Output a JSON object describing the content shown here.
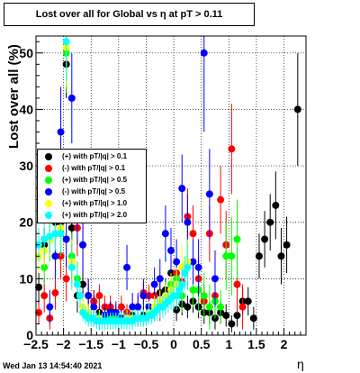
{
  "title": "Lost over all for Global vs   η at pT > 0.11",
  "footer": "Wed Jan 13 14:54:40 2021",
  "chart_data": {
    "type": "scatter",
    "xlabel": "η",
    "ylabel": "Lost over all (%)",
    "xlim": [
      -2.5,
      2.4
    ],
    "ylim": [
      0,
      53
    ],
    "x_ticks": [
      -2.5,
      -2,
      -1.5,
      -1,
      -0.5,
      0,
      0.5,
      1,
      1.5,
      2
    ],
    "x_tick_labels": [
      "−2.5",
      "−2",
      "−1.5",
      "−1",
      "−0.5",
      "0",
      "0.5",
      "1",
      "1.5",
      "2"
    ],
    "y_ticks": [
      0,
      10,
      20,
      30,
      40,
      50
    ],
    "y_tick_labels": [
      "0",
      "10",
      "20",
      "30",
      "40",
      "50"
    ],
    "grid": true,
    "legend_position": "left-middle",
    "series": [
      {
        "name": "(+) with pT/|q| > 0.1",
        "color": "#000000",
        "points": [
          [
            -2.45,
            8.5,
            3
          ],
          [
            -2.35,
            16,
            3
          ],
          [
            -2.25,
            17,
            3
          ],
          [
            -2.15,
            20,
            4
          ],
          [
            -2.05,
            20,
            4
          ],
          [
            -1.95,
            48,
            6
          ],
          [
            -1.85,
            19,
            4
          ],
          [
            -1.75,
            7,
            3
          ],
          [
            -1.65,
            9,
            3
          ],
          [
            -1.55,
            7,
            2
          ],
          [
            -1.45,
            6,
            2
          ],
          [
            -1.35,
            4,
            1.5
          ],
          [
            -1.25,
            3.5,
            1.5
          ],
          [
            -1.15,
            4.5,
            1.5
          ],
          [
            -1.05,
            3.5,
            1.5
          ],
          [
            -0.95,
            3,
            1.5
          ],
          [
            -0.85,
            4,
            1.5
          ],
          [
            -0.75,
            3.5,
            1.5
          ],
          [
            -0.65,
            3,
            1.5
          ],
          [
            -0.55,
            3.5,
            1.5
          ],
          [
            -0.45,
            5,
            2
          ],
          [
            -0.35,
            4.5,
            2
          ],
          [
            -0.25,
            7.5,
            2
          ],
          [
            -0.15,
            8,
            2
          ],
          [
            -0.05,
            11,
            3
          ],
          [
            0.05,
            4.5,
            2
          ],
          [
            0.15,
            5.5,
            2
          ],
          [
            0.25,
            5,
            2
          ],
          [
            0.35,
            6,
            2
          ],
          [
            0.45,
            5,
            2
          ],
          [
            0.55,
            4,
            2
          ],
          [
            0.65,
            4,
            2
          ],
          [
            0.75,
            3,
            2
          ],
          [
            0.85,
            4,
            2
          ],
          [
            0.95,
            3.5,
            2
          ],
          [
            1.05,
            2,
            1.5
          ],
          [
            1.15,
            3.5,
            2
          ],
          [
            1.25,
            6,
            2.5
          ],
          [
            1.35,
            6,
            2.5
          ],
          [
            1.45,
            3,
            2
          ],
          [
            1.55,
            14,
            4
          ],
          [
            1.65,
            17,
            5
          ],
          [
            1.75,
            20,
            5
          ],
          [
            1.85,
            23,
            6
          ],
          [
            1.95,
            14,
            5
          ],
          [
            2.05,
            16,
            5
          ],
          [
            2.25,
            40,
            10
          ]
        ]
      },
      {
        "name": "(-) with pT/|q| > 0.1",
        "color": "#ff0000",
        "points": [
          [
            -2.45,
            4,
            2
          ],
          [
            -2.35,
            7,
            3
          ],
          [
            -2.25,
            3,
            2
          ],
          [
            -2.15,
            7.5,
            3
          ],
          [
            -2.05,
            14,
            4
          ],
          [
            -1.95,
            10,
            4
          ],
          [
            -1.85,
            13,
            4
          ],
          [
            -1.75,
            19,
            5
          ],
          [
            -1.65,
            16,
            5
          ],
          [
            -1.55,
            7,
            3
          ],
          [
            -1.45,
            6,
            2
          ],
          [
            -1.35,
            7,
            2
          ],
          [
            -1.25,
            5,
            2
          ],
          [
            -1.15,
            5,
            2
          ],
          [
            -1.05,
            4,
            1.5
          ],
          [
            -0.95,
            5,
            2
          ],
          [
            -0.85,
            4,
            1.5
          ],
          [
            -0.75,
            3,
            1.5
          ],
          [
            -0.65,
            5,
            2
          ],
          [
            -0.55,
            7.5,
            2
          ],
          [
            -0.45,
            7,
            2
          ],
          [
            -0.35,
            7,
            2.5
          ],
          [
            -0.25,
            5,
            2.5
          ],
          [
            -0.15,
            7,
            2.5
          ],
          [
            -0.05,
            8,
            3
          ],
          [
            0.05,
            11,
            3
          ],
          [
            0.15,
            9.5,
            3
          ],
          [
            0.25,
            21,
            5
          ],
          [
            0.35,
            18,
            5
          ],
          [
            0.45,
            10,
            4
          ],
          [
            0.55,
            6,
            3
          ],
          [
            0.65,
            18,
            5
          ],
          [
            0.75,
            7,
            4
          ],
          [
            0.85,
            24,
            6
          ],
          [
            0.95,
            16,
            6
          ],
          [
            1.05,
            33,
            8
          ],
          [
            1.15,
            9,
            5
          ],
          [
            1.25,
            5,
            4
          ]
        ]
      },
      {
        "name": "(+) with pT/|q| > 0.5",
        "color": "#00ff00",
        "points": [
          [
            -2.35,
            12,
            3
          ],
          [
            -2.25,
            17,
            4
          ],
          [
            -2.15,
            18,
            4
          ],
          [
            -2.05,
            18,
            4
          ],
          [
            -1.95,
            50,
            7
          ],
          [
            -1.85,
            14,
            4
          ],
          [
            -1.75,
            10,
            3
          ],
          [
            -1.65,
            5,
            2
          ],
          [
            -1.55,
            4,
            2
          ],
          [
            -1.45,
            3,
            1.5
          ],
          [
            -1.35,
            3,
            1.5
          ],
          [
            -1.25,
            3,
            1.5
          ],
          [
            -1.15,
            3,
            1.5
          ],
          [
            -1.05,
            3,
            1.5
          ],
          [
            -0.95,
            3,
            1.5
          ],
          [
            -0.85,
            3,
            1.5
          ],
          [
            -0.75,
            3,
            1.5
          ],
          [
            -0.65,
            3,
            1.5
          ],
          [
            -0.55,
            3,
            1.5
          ],
          [
            -0.45,
            4,
            2
          ],
          [
            -0.35,
            4.5,
            2
          ],
          [
            -0.25,
            6,
            2
          ],
          [
            -0.15,
            7,
            2.5
          ],
          [
            -0.05,
            9,
            3
          ],
          [
            0.05,
            10,
            3
          ],
          [
            0.15,
            7,
            3
          ],
          [
            0.25,
            12,
            4
          ],
          [
            0.35,
            8,
            3
          ],
          [
            0.45,
            8,
            4
          ],
          [
            0.55,
            7,
            4
          ],
          [
            0.65,
            5,
            4
          ],
          [
            0.75,
            6,
            3
          ],
          [
            0.85,
            5,
            3
          ],
          [
            0.95,
            14,
            6
          ],
          [
            1.05,
            14,
            7
          ],
          [
            1.15,
            17,
            7
          ]
        ]
      },
      {
        "name": "(-) with pT/|q| > 0.5",
        "color": "#0000ff",
        "points": [
          [
            -2.25,
            5,
            3
          ],
          [
            -2.15,
            14,
            4
          ],
          [
            -2.05,
            36,
            8
          ],
          [
            -1.95,
            17,
            5
          ],
          [
            -1.85,
            42,
            8
          ],
          [
            -1.75,
            21,
            5
          ],
          [
            -1.65,
            16,
            5
          ],
          [
            -1.55,
            7,
            3
          ],
          [
            -1.45,
            5,
            2
          ],
          [
            -1.35,
            3,
            2
          ],
          [
            -1.25,
            3.5,
            2
          ],
          [
            -1.15,
            4,
            2
          ],
          [
            -1.05,
            4,
            2
          ],
          [
            -0.95,
            3,
            1.5
          ],
          [
            -0.85,
            12,
            4
          ],
          [
            -0.75,
            5,
            2.5
          ],
          [
            -0.65,
            5,
            2.5
          ],
          [
            -0.55,
            7,
            3
          ],
          [
            -0.45,
            5,
            2.5
          ],
          [
            -0.35,
            9,
            3
          ],
          [
            -0.25,
            10,
            3.5
          ],
          [
            -0.15,
            18,
            5
          ],
          [
            -0.05,
            15,
            4
          ],
          [
            0.05,
            13,
            4
          ],
          [
            0.15,
            26,
            6
          ],
          [
            0.25,
            20,
            5
          ],
          [
            0.35,
            13,
            4
          ],
          [
            0.45,
            12,
            5
          ],
          [
            0.55,
            50,
            14
          ],
          [
            0.65,
            25,
            8
          ],
          [
            0.75,
            10,
            5
          ]
        ]
      },
      {
        "name": "(+) with pT/|q| > 1.0",
        "color": "#ffff00",
        "points": [
          [
            -2.45,
            14,
            3
          ],
          [
            -2.35,
            15,
            3
          ],
          [
            -2.25,
            17,
            3
          ],
          [
            -2.15,
            18,
            3
          ],
          [
            -2.05,
            19,
            4
          ],
          [
            -1.95,
            51,
            7
          ],
          [
            -1.85,
            13,
            4
          ],
          [
            -1.75,
            9,
            3
          ],
          [
            -1.65,
            5,
            2
          ],
          [
            -1.55,
            4,
            1.5
          ],
          [
            -1.45,
            3,
            1.5
          ],
          [
            -1.35,
            3,
            1.5
          ],
          [
            -1.25,
            2.5,
            1.5
          ],
          [
            -1.15,
            2.5,
            1.5
          ],
          [
            -1.05,
            2.5,
            1.5
          ],
          [
            -0.95,
            2.5,
            1.5
          ],
          [
            -0.85,
            3,
            1.5
          ],
          [
            -0.75,
            3,
            1.5
          ],
          [
            -0.65,
            3,
            1.5
          ],
          [
            -0.55,
            3,
            1.5
          ],
          [
            -0.45,
            4,
            2
          ],
          [
            -0.35,
            5,
            2
          ],
          [
            -0.25,
            6,
            2
          ],
          [
            -0.15,
            7,
            2
          ],
          [
            -0.05,
            8,
            3
          ],
          [
            0.05,
            9,
            3
          ],
          [
            0.15,
            12,
            4
          ],
          [
            0.25,
            13,
            4
          ]
        ]
      },
      {
        "name": "(+) with pT/|q| > 2.0",
        "color": "#00ffff",
        "points": [
          [
            -2.45,
            16,
            3
          ],
          [
            -2.35,
            17,
            3
          ],
          [
            -2.25,
            17.5,
            3
          ],
          [
            -2.15,
            18,
            3
          ],
          [
            -2.05,
            18,
            3
          ],
          [
            -1.95,
            52,
            7
          ],
          [
            -1.85,
            12,
            4
          ],
          [
            -1.75,
            9,
            3
          ],
          [
            -1.7,
            7,
            2
          ],
          [
            -1.65,
            4,
            1.5
          ],
          [
            -1.6,
            3.5,
            1.5
          ],
          [
            -1.55,
            3,
            1.5
          ],
          [
            -1.5,
            3,
            1.5
          ],
          [
            -1.45,
            3,
            1.5
          ],
          [
            -1.4,
            2.5,
            1.5
          ],
          [
            -1.35,
            2.5,
            1.5
          ],
          [
            -1.3,
            2.5,
            1.5
          ],
          [
            -1.25,
            2.5,
            1.5
          ],
          [
            -1.2,
            2.5,
            1.5
          ],
          [
            -1.15,
            2.5,
            1.5
          ],
          [
            -1.1,
            2.5,
            1.5
          ],
          [
            -1.05,
            2.5,
            1.5
          ],
          [
            -1.0,
            2.5,
            1.5
          ],
          [
            -0.95,
            2.5,
            1.5
          ],
          [
            -0.9,
            2.5,
            1.5
          ],
          [
            -0.85,
            2.5,
            1.5
          ],
          [
            -0.8,
            2.5,
            1.5
          ],
          [
            -0.75,
            2.5,
            1.5
          ],
          [
            -0.7,
            3,
            1.5
          ],
          [
            -0.65,
            3,
            1.5
          ],
          [
            -0.6,
            3,
            1.5
          ],
          [
            -0.55,
            3,
            1.5
          ],
          [
            -0.5,
            3,
            1.5
          ],
          [
            -0.45,
            3.5,
            1.5
          ],
          [
            -0.4,
            3.5,
            1.5
          ],
          [
            -0.35,
            4,
            1.5
          ],
          [
            -0.3,
            4.5,
            2
          ],
          [
            -0.25,
            5,
            2
          ],
          [
            -0.2,
            5,
            2
          ],
          [
            -0.15,
            5.5,
            2
          ],
          [
            -0.1,
            6,
            2
          ],
          [
            -0.05,
            6.5,
            2
          ],
          [
            0.0,
            7,
            2.5
          ],
          [
            0.05,
            7,
            2.5
          ],
          [
            0.1,
            8,
            2.5
          ],
          [
            0.15,
            9,
            3
          ],
          [
            0.2,
            11,
            3
          ],
          [
            0.25,
            12,
            4
          ]
        ]
      }
    ]
  }
}
